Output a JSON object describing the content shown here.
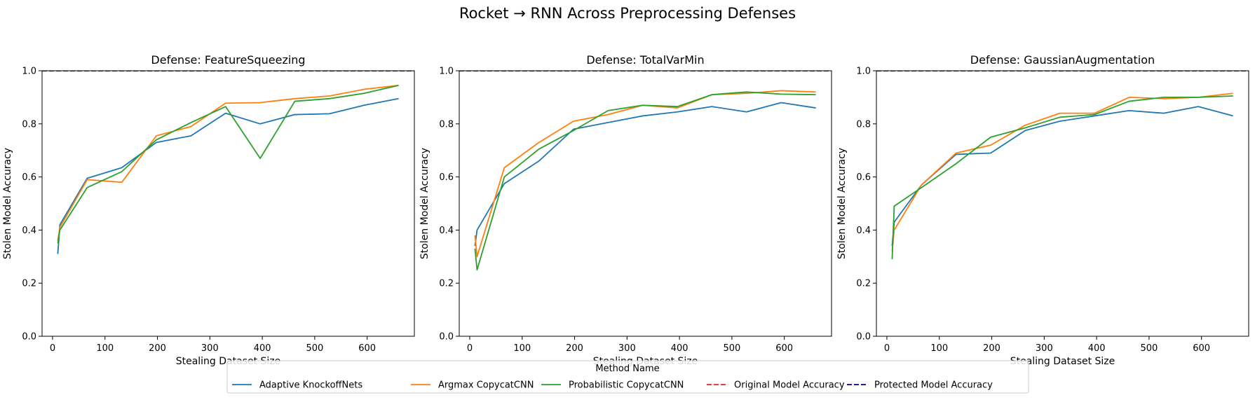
{
  "figure": {
    "title": "Rocket → RNN Across Preprocessing Defenses"
  },
  "colors": {
    "adaptive": "#1f77b4",
    "argmax": "#ff7f0e",
    "probabilistic": "#2ca02c",
    "original": "#d62728",
    "protected": "#000080"
  },
  "legend": {
    "title": "Method Name",
    "entries": [
      {
        "label": "Adaptive KnockoffNets",
        "color": "#1f77b4",
        "dashed": false
      },
      {
        "label": "Argmax CopycatCNN",
        "color": "#ff7f0e",
        "dashed": false
      },
      {
        "label": "Probabilistic CopycatCNN",
        "color": "#2ca02c",
        "dashed": false
      },
      {
        "label": "Original Model Accuracy",
        "color": "#d62728",
        "dashed": true
      },
      {
        "label": "Protected Model Accuracy",
        "color": "#000080",
        "dashed": true
      }
    ]
  },
  "chart_data": [
    {
      "type": "line",
      "title": "Defense: FeatureSqueezing",
      "xlabel": "Stealing Dataset Size",
      "ylabel": "Stolen Model Accuracy",
      "xlim": [
        -20,
        690
      ],
      "ylim": [
        0.0,
        1.0
      ],
      "xticks": [
        0,
        100,
        200,
        300,
        400,
        500,
        600
      ],
      "yticks": [
        0.0,
        0.2,
        0.4,
        0.6,
        0.8,
        1.0
      ],
      "xticklabels": [
        "0",
        "100",
        "200",
        "300",
        "400",
        "500",
        "600"
      ],
      "yticklabels": [
        "0.0",
        "0.2",
        "0.4",
        "0.6",
        "0.8",
        "1.0"
      ],
      "x": [
        10,
        14,
        66,
        132,
        198,
        264,
        330,
        396,
        462,
        528,
        594,
        660
      ],
      "series": [
        {
          "name": "Adaptive KnockoffNets",
          "values": [
            0.31,
            0.42,
            0.595,
            0.635,
            0.73,
            0.755,
            0.84,
            0.8,
            0.835,
            0.838,
            0.87,
            0.895
          ]
        },
        {
          "name": "Argmax CopycatCNN",
          "values": [
            0.36,
            0.41,
            0.59,
            0.58,
            0.755,
            0.79,
            0.878,
            0.88,
            0.895,
            0.905,
            0.93,
            0.945
          ]
        },
        {
          "name": "Probabilistic CopycatCNN",
          "values": [
            0.35,
            0.4,
            0.56,
            0.62,
            0.74,
            0.805,
            0.865,
            0.67,
            0.885,
            0.895,
            0.915,
            0.945
          ]
        }
      ],
      "reference_lines": {
        "original": 1.0,
        "protected": 1.0
      },
      "grid": false
    },
    {
      "type": "line",
      "title": "Defense: TotalVarMin",
      "xlabel": "Stealing Dataset Size",
      "ylabel": "Stolen Model Accuracy",
      "xlim": [
        -20,
        690
      ],
      "ylim": [
        0.0,
        1.0
      ],
      "xticks": [
        0,
        100,
        200,
        300,
        400,
        500,
        600
      ],
      "yticks": [
        0.0,
        0.2,
        0.4,
        0.6,
        0.8,
        1.0
      ],
      "xticklabels": [
        "0",
        "100",
        "200",
        "300",
        "400",
        "500",
        "600"
      ],
      "yticklabels": [
        "0.0",
        "0.2",
        "0.4",
        "0.6",
        "0.8",
        "1.0"
      ],
      "x": [
        10,
        14,
        66,
        132,
        198,
        264,
        330,
        396,
        462,
        528,
        594,
        660
      ],
      "series": [
        {
          "name": "Adaptive KnockoffNets",
          "values": [
            0.34,
            0.4,
            0.575,
            0.66,
            0.78,
            0.805,
            0.83,
            0.845,
            0.865,
            0.845,
            0.88,
            0.86
          ]
        },
        {
          "name": "Argmax CopycatCNN",
          "values": [
            0.38,
            0.3,
            0.635,
            0.73,
            0.81,
            0.835,
            0.87,
            0.86,
            0.91,
            0.915,
            0.925,
            0.92
          ]
        },
        {
          "name": "Probabilistic CopycatCNN",
          "values": [
            0.33,
            0.25,
            0.6,
            0.705,
            0.775,
            0.85,
            0.87,
            0.865,
            0.91,
            0.92,
            0.912,
            0.91
          ]
        }
      ],
      "reference_lines": {
        "original": 1.0,
        "protected": 1.0
      },
      "grid": false
    },
    {
      "type": "line",
      "title": "Defense: GaussianAugmentation",
      "xlabel": "Stealing Dataset Size",
      "ylabel": "Stolen Model Accuracy",
      "xlim": [
        -20,
        690
      ],
      "ylim": [
        0.0,
        1.0
      ],
      "xticks": [
        0,
        100,
        200,
        300,
        400,
        500,
        600
      ],
      "yticks": [
        0.0,
        0.2,
        0.4,
        0.6,
        0.8,
        1.0
      ],
      "xticklabels": [
        "0",
        "100",
        "200",
        "300",
        "400",
        "500",
        "600"
      ],
      "yticklabels": [
        "0.0",
        "0.2",
        "0.4",
        "0.6",
        "0.8",
        "1.0"
      ],
      "x": [
        10,
        14,
        66,
        132,
        198,
        264,
        330,
        396,
        462,
        528,
        594,
        660
      ],
      "series": [
        {
          "name": "Adaptive KnockoffNets",
          "values": [
            0.34,
            0.43,
            0.57,
            0.685,
            0.69,
            0.775,
            0.81,
            0.83,
            0.85,
            0.84,
            0.865,
            0.83
          ]
        },
        {
          "name": "Argmax CopycatCNN",
          "values": [
            0.32,
            0.4,
            0.57,
            0.69,
            0.72,
            0.795,
            0.84,
            0.84,
            0.9,
            0.895,
            0.9,
            0.915
          ]
        },
        {
          "name": "Probabilistic CopycatCNN",
          "values": [
            0.29,
            0.49,
            0.56,
            0.65,
            0.75,
            0.785,
            0.825,
            0.835,
            0.885,
            0.9,
            0.9,
            0.905
          ]
        }
      ],
      "reference_lines": {
        "original": 1.0,
        "protected": 1.0
      },
      "grid": false
    }
  ]
}
